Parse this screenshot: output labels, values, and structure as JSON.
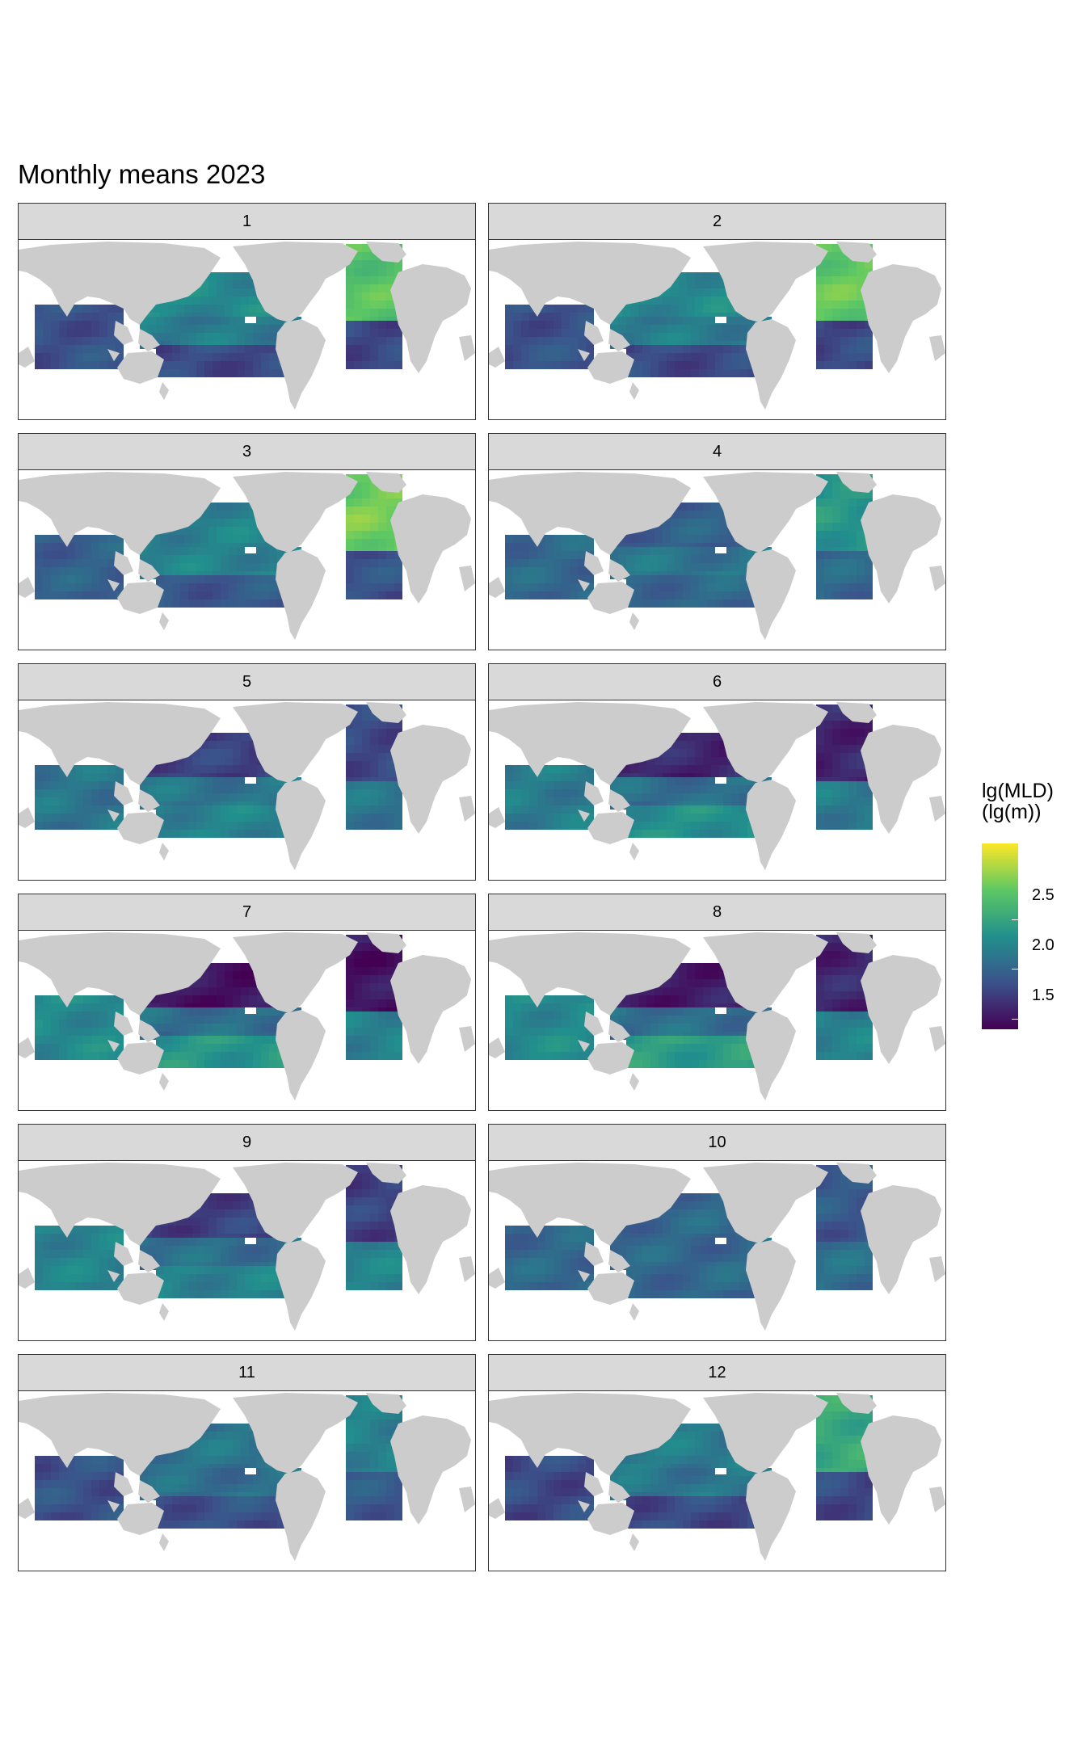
{
  "title": "Monthly means 2023",
  "legend": {
    "title": "lg(MLD)\n(lg(m))",
    "ticks": [
      "2.5",
      "2.0",
      "1.5"
    ],
    "palette": [
      "#440154",
      "#3b528b",
      "#21908d",
      "#5dc863",
      "#fde725"
    ]
  },
  "panels": [
    "1",
    "2",
    "3",
    "4",
    "5",
    "6",
    "7",
    "8",
    "9",
    "10",
    "11",
    "12"
  ],
  "chart_data": {
    "type": "heatmap",
    "title": "Monthly means 2023",
    "facets": [
      "1",
      "2",
      "3",
      "4",
      "5",
      "6",
      "7",
      "8",
      "9",
      "10",
      "11",
      "12"
    ],
    "fill_label": "lg(MLD)\n(lg(m))",
    "fill_range": [
      1.1,
      2.9
    ],
    "fill_ticks": [
      1.5,
      2.0,
      2.5
    ],
    "colors": {
      "land": "#cccccc",
      "ocean_empty": "#ffffff",
      "strip": "#d9d9d9"
    },
    "regional_mean_lg_mld": {
      "north_pacific": [
        1.95,
        1.95,
        1.9,
        1.65,
        1.45,
        1.3,
        1.2,
        1.25,
        1.45,
        1.7,
        1.8,
        1.85
      ],
      "equatorial_pacific": [
        1.85,
        1.85,
        1.9,
        1.8,
        1.8,
        1.75,
        1.75,
        1.75,
        1.75,
        1.7,
        1.75,
        1.8
      ],
      "south_pacific": [
        1.5,
        1.5,
        1.6,
        1.7,
        1.9,
        2.0,
        2.05,
        2.1,
        1.9,
        1.7,
        1.55,
        1.5
      ],
      "north_atlantic": [
        2.4,
        2.45,
        2.5,
        2.05,
        1.5,
        1.3,
        1.2,
        1.3,
        1.45,
        1.6,
        1.9,
        2.2
      ],
      "south_atlantic": [
        1.5,
        1.5,
        1.55,
        1.7,
        1.8,
        1.85,
        1.9,
        1.9,
        1.9,
        1.75,
        1.6,
        1.5
      ],
      "indian_ocean": [
        1.55,
        1.55,
        1.65,
        1.7,
        1.8,
        1.85,
        1.95,
        1.95,
        1.9,
        1.7,
        1.55,
        1.5
      ]
    }
  }
}
